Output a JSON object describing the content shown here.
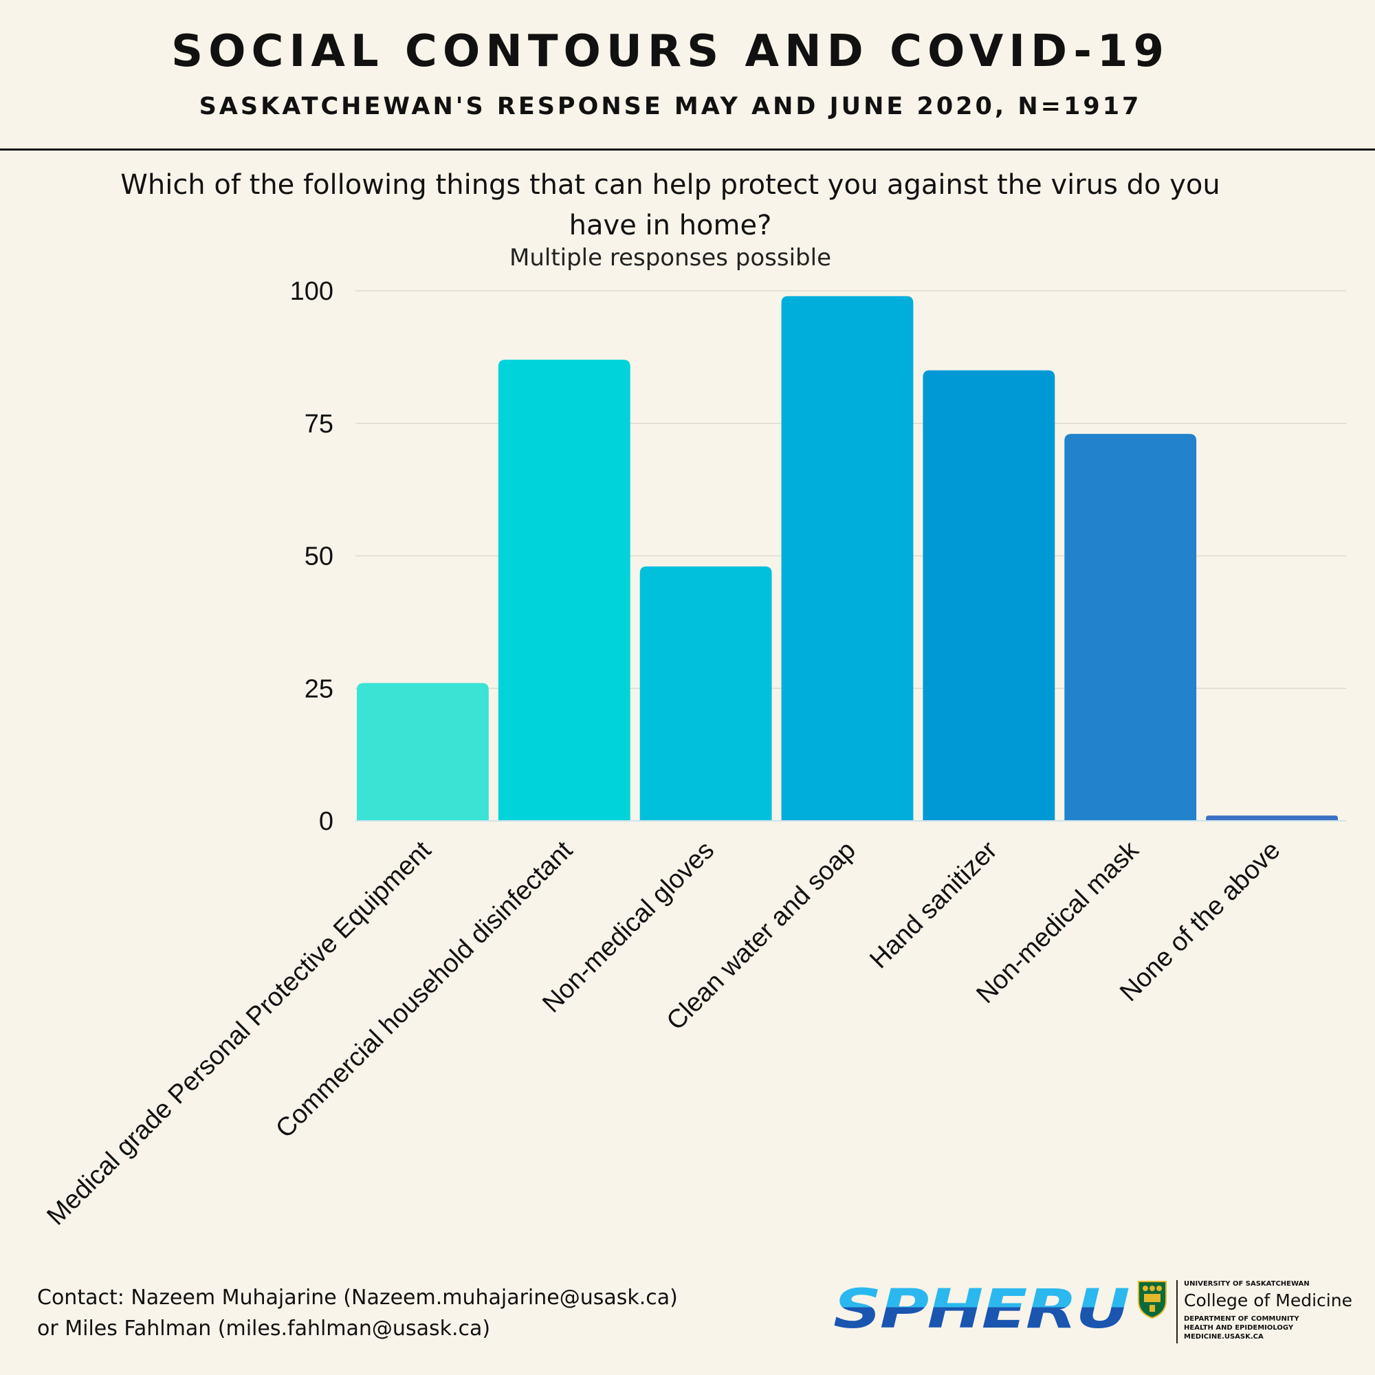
{
  "header": {
    "title": "SOCIAL CONTOURS AND COVID-19",
    "subtitle": "SASKATCHEWAN'S RESPONSE MAY AND JUNE 2020, N=1917"
  },
  "chart_data": {
    "type": "bar",
    "title": "Which of the following things that can help protect you against the virus do you have in home?",
    "subtitle": "Multiple responses possible",
    "categories": [
      "Medical grade Personal Protective Equipment",
      "Commercial household disinfectant",
      "Non-medical gloves",
      "Clean water and soap",
      "Hand sanitizer",
      "Non-medical mask",
      "None of the above"
    ],
    "values": [
      26,
      87,
      48,
      99,
      85,
      73,
      1
    ],
    "colors": [
      "#3be3d4",
      "#00d3d9",
      "#00c0dc",
      "#00aedc",
      "#0099d6",
      "#2283cc",
      "#3b70c3"
    ],
    "ylim": [
      0,
      100
    ],
    "yticks": [
      "0",
      "25",
      "50",
      "75",
      "100"
    ],
    "xlabel": "",
    "ylabel": "",
    "grid": true,
    "legend": "none"
  },
  "footer": {
    "contact_line1": "Contact: Nazeem Muhajarine (Nazeem.muhajarine@usask.ca)",
    "contact_line2": "or Miles Fahlman (miles.fahlman@usask.ca)",
    "logo_spheru": "SPHERU",
    "uofs_name": "UNIVERSITY OF SASKATCHEWAN",
    "college": "College of Medicine",
    "dept1": "DEPARTMENT OF COMMUNITY",
    "dept2": "HEALTH AND EPIDEMIOLOGY",
    "website": "MEDICINE.USASK.CA"
  }
}
